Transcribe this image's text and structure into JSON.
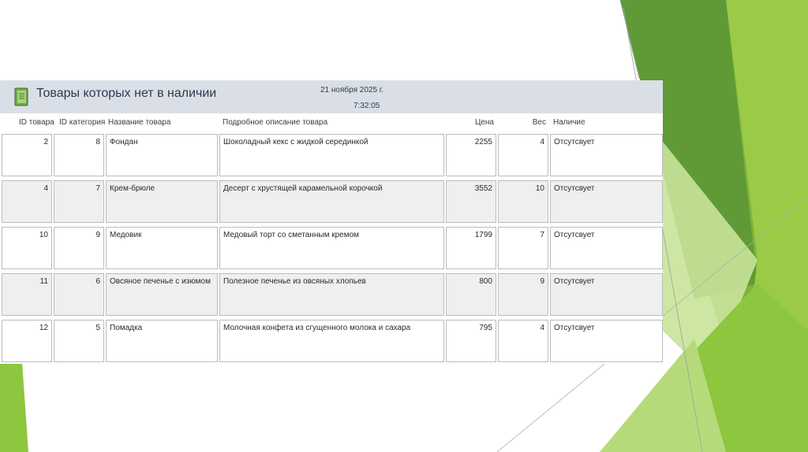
{
  "report": {
    "title": "Товары которых нет в наличии",
    "date": "21 ноября 2025 г.",
    "time": "7:32:05",
    "columns": {
      "id": "ID товара",
      "category": "ID категория",
      "name": "Название товара",
      "description": "Подробное описание товара",
      "price": "Цена",
      "weight": "Вес",
      "availability": "Наличие"
    },
    "rows": [
      {
        "id": "2",
        "category": "8",
        "name": "Фондан",
        "description": "Шоколадный кекс с жидкой серединкой",
        "price": "2255",
        "weight": "4",
        "availability": "Отсутсвует"
      },
      {
        "id": "4",
        "category": "7",
        "name": "Крем-брюле",
        "description": "Десерт с хрустящей карамельной корочкой",
        "price": "3552",
        "weight": "10",
        "availability": "Отсутсвует"
      },
      {
        "id": "10",
        "category": "9",
        "name": "Медовик",
        "description": " Медовый торт со сметанным кремом",
        "price": "1799",
        "weight": "7",
        "availability": "Отсутсвует"
      },
      {
        "id": "11",
        "category": "6",
        "name": "Овсяное печенье с изюмом",
        "description": "Полезное печенье из овсяных хлопьев",
        "price": "800",
        "weight": "9",
        "availability": "Отсутсвует"
      },
      {
        "id": "12",
        "category": "5",
        "name": "Помадка",
        "description": " Молочная конфета из сгущенного молока и сахара",
        "price": "795",
        "weight": "4",
        "availability": "Отсутсвует"
      }
    ]
  },
  "theme": {
    "header_bg": "#dadfe7",
    "accent_green": "#8dc63f",
    "dark_green": "#5a9a32",
    "light_green": "#c9e39a"
  },
  "icons": {
    "report": "report-notebook-icon"
  }
}
